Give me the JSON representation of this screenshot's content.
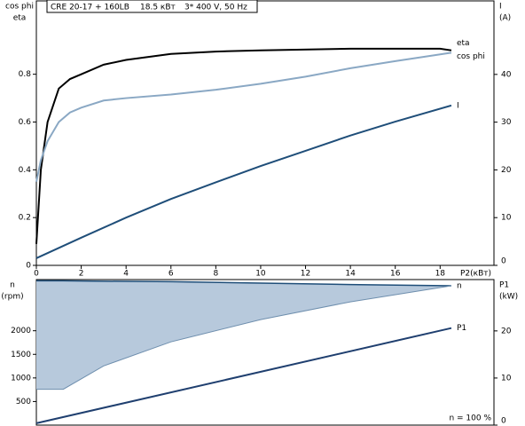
{
  "chart_data": [
    {
      "type": "line",
      "header": [
        "CRE 20-17 + 160LB",
        "18.5 кВт",
        "3* 400 V, 50 Hz"
      ],
      "ylabel": [
        "cos phi",
        "eta"
      ],
      "y2label": [
        "I",
        "(A)"
      ],
      "xlabel": "P2(кВт)",
      "xlim": [
        0,
        20.4
      ],
      "xticks": [
        0,
        2,
        4,
        6,
        8,
        10,
        12,
        14,
        16,
        18
      ],
      "ylim": [
        0,
        1.107
      ],
      "yticks": [
        0,
        0.2,
        0.4,
        0.6,
        0.8
      ],
      "y2lim": [
        0,
        55.4
      ],
      "y2ticks": [
        0,
        10,
        20,
        30,
        40
      ],
      "series": [
        {
          "name": "eta",
          "color": "#000000",
          "x": [
            0,
            0.2,
            0.5,
            1,
            1.5,
            2,
            3,
            4,
            6,
            8,
            10,
            14,
            18,
            18.5
          ],
          "values": [
            0.09,
            0.4,
            0.6,
            0.74,
            0.78,
            0.8,
            0.84,
            0.86,
            0.885,
            0.895,
            0.9,
            0.907,
            0.907,
            0.9
          ]
        },
        {
          "name": "cos phi",
          "color": "#8aa8c4",
          "x": [
            0,
            0.2,
            0.5,
            1,
            1.5,
            2,
            3,
            4,
            6,
            8,
            10,
            12,
            14,
            16,
            18.5
          ],
          "values": [
            0.35,
            0.44,
            0.52,
            0.6,
            0.64,
            0.66,
            0.69,
            0.7,
            0.715,
            0.735,
            0.76,
            0.79,
            0.825,
            0.855,
            0.89
          ]
        },
        {
          "name": "I",
          "color": "#1f4e79",
          "axis": "y2",
          "x": [
            0,
            2,
            4,
            6,
            8,
            10,
            12,
            14,
            16,
            18.5
          ],
          "values": [
            1.5,
            5.8,
            10,
            13.9,
            17.4,
            20.8,
            24,
            27.2,
            30.1,
            33.5
          ]
        }
      ]
    },
    {
      "type": "area",
      "ylabel": [
        "n",
        "(rpm)"
      ],
      "y2label": [
        "P1",
        "(kW)"
      ],
      "annotation": "n  = 100 %",
      "xlim": [
        0,
        20.4
      ],
      "ylim": [
        0,
        3085
      ],
      "yticks": [
        500,
        1000,
        1500,
        2000
      ],
      "y2lim": [
        0,
        30.9
      ],
      "y2ticks": [
        0,
        10,
        20
      ],
      "series": [
        {
          "name": "n",
          "color": "#b7c9dc",
          "x": [
            0,
            1.2,
            3,
            6,
            10,
            14,
            18.5
          ],
          "values": [
            760,
            760,
            1255,
            1765,
            2236,
            2613,
            2953
          ],
          "upper": [
            3060,
            3060,
            3050,
            3040,
            3010,
            2980,
            2953
          ]
        },
        {
          "name": "P1",
          "color": "#1f3f6f",
          "axis": "y2",
          "x": [
            0,
            18.5
          ],
          "values": [
            0.4,
            20.6
          ]
        }
      ]
    }
  ]
}
